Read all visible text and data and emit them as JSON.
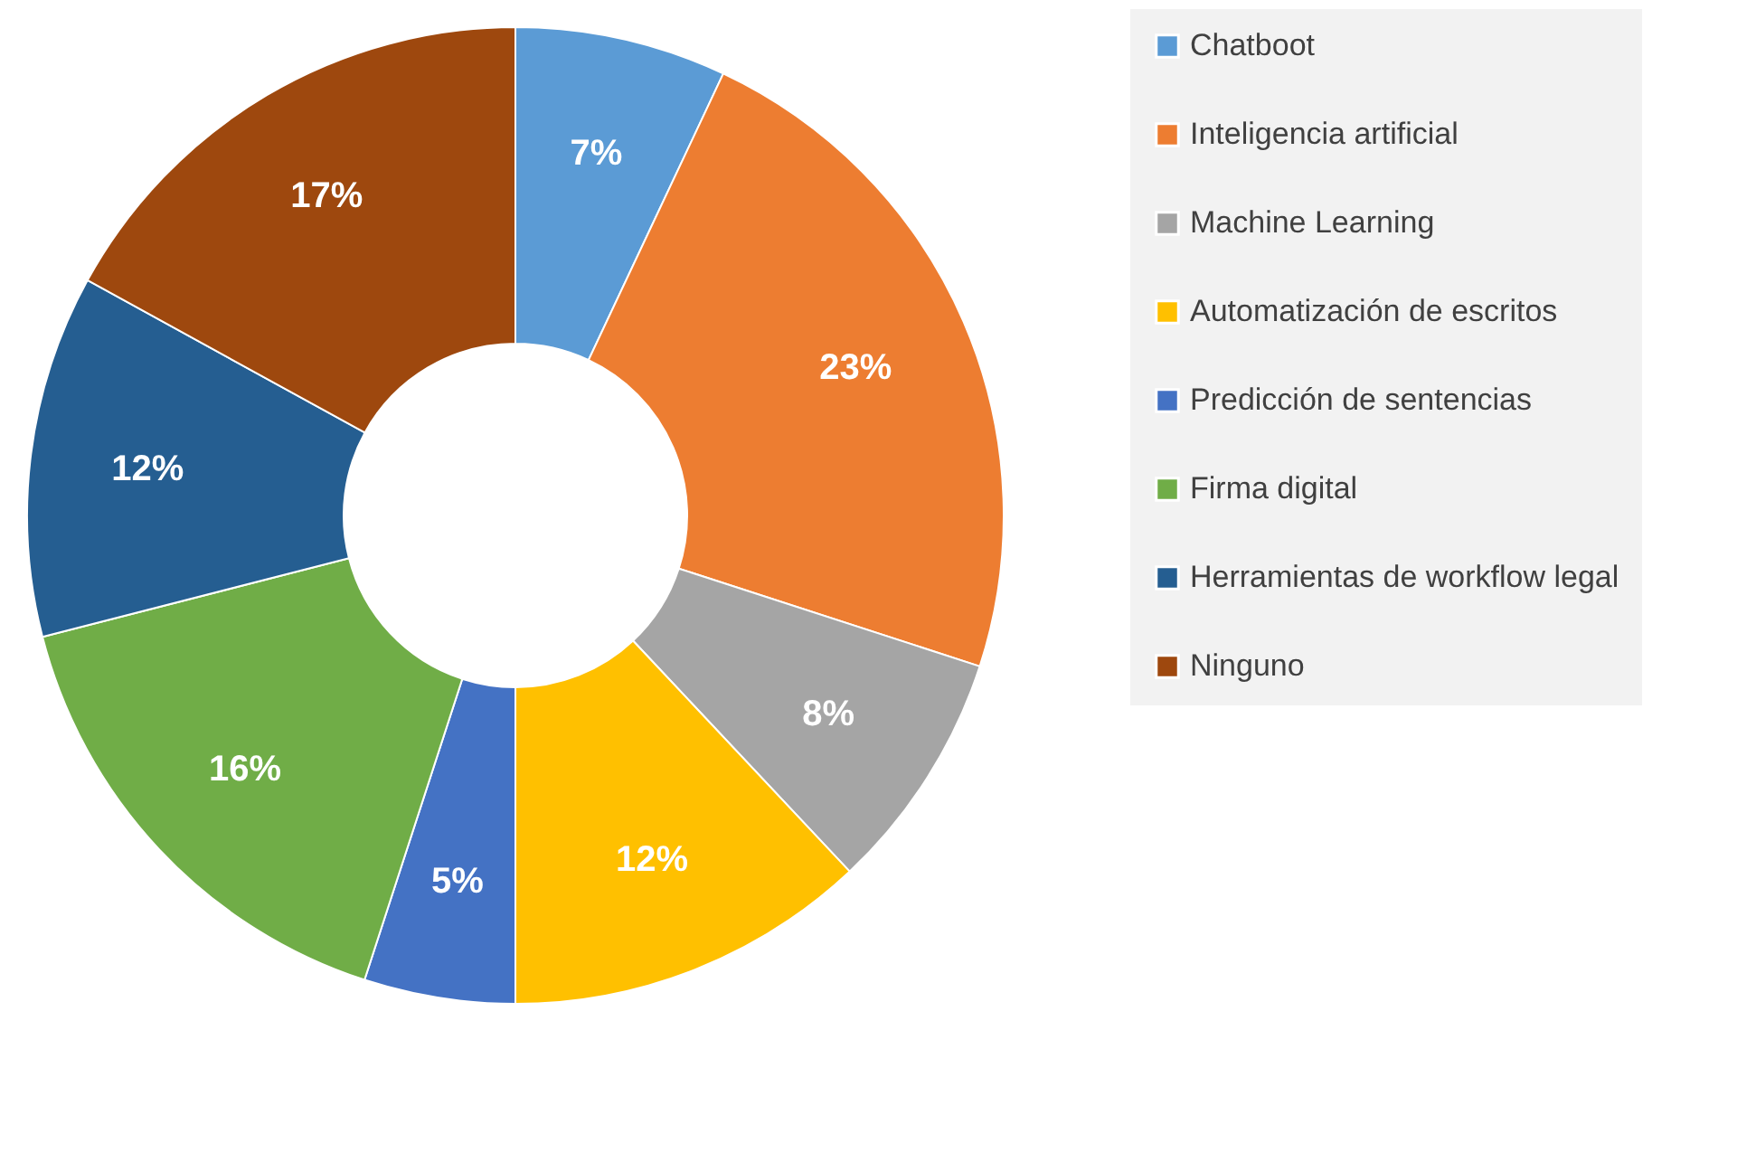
{
  "chart_data": {
    "type": "donut",
    "categories": [
      "Chatboot",
      "Inteligencia artificial",
      "Machine Learning",
      "Automatización de escritos",
      "Predicción de sentencias",
      "Firma digital",
      "Herramientas de workflow legal",
      "Ninguno"
    ],
    "values": [
      7,
      23,
      8,
      12,
      5,
      16,
      12,
      17
    ],
    "value_labels": [
      "7%",
      "23%",
      "8%",
      "12%",
      "5%",
      "16%",
      "12%",
      "17%"
    ],
    "colors": [
      "#5b9bd5",
      "#ed7d31",
      "#a5a5a5",
      "#ffc000",
      "#4472c4",
      "#70ad47",
      "#255e91",
      "#9e480e"
    ],
    "legend": "right"
  }
}
